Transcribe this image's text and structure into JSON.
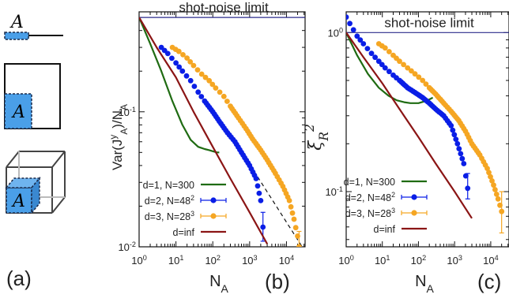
{
  "panel_labels": {
    "a": "(a)",
    "b": "(b)",
    "c": "(c)"
  },
  "schematic": {
    "region_label": "A"
  },
  "colors": {
    "d1": "#1f6b12",
    "d2": "#0a1ee6",
    "d3": "#f5a623",
    "dinf": "#8b1515",
    "shotnoise": "#2b2b8c",
    "region_fill": "#4a9fe8",
    "region_border": "#1a2a4a"
  },
  "chart_data": [
    {
      "type": "line",
      "panel": "b",
      "xlabel": "N_A",
      "ylabel": "Var(J^y_A)/N_A",
      "xscale": "log",
      "yscale": "log",
      "xlim": [
        1,
        32000
      ],
      "ylim": [
        0.01,
        0.55
      ],
      "x_ticks": [
        1,
        10,
        100,
        1000,
        10000
      ],
      "x_tick_labels": [
        "10^0",
        "10^1",
        "10^2",
        "10^3",
        "10^4"
      ],
      "y_ticks": [
        0.01,
        0.1
      ],
      "y_tick_labels": [
        "10^-2",
        "10^-1"
      ],
      "annotation": "shot-noise limit",
      "reference_line": {
        "y": 0.5
      },
      "guide_line": {
        "style": "dashed",
        "x": [
          500,
          30000
        ],
        "y": [
          0.055,
          0.0095
        ]
      },
      "legend": [
        {
          "name": "d=1, N=300",
          "series": "d1"
        },
        {
          "name": "d=2, N=48^2",
          "series": "d2"
        },
        {
          "name": "d=3, N=28^3",
          "series": "d3"
        },
        {
          "name": "d=inf",
          "series": "dinf"
        }
      ],
      "series": [
        {
          "id": "d1",
          "name": "d=1, N=300",
          "kind": "line",
          "x": [
            1,
            2,
            4,
            8,
            15,
            25,
            40,
            60,
            80,
            100,
            130,
            150
          ],
          "y": [
            0.5,
            0.32,
            0.2,
            0.12,
            0.08,
            0.062,
            0.055,
            0.053,
            0.052,
            0.051,
            0.05,
            0.05
          ]
        },
        {
          "id": "d2",
          "name": "d=2, N=48^2",
          "kind": "points",
          "x": [
            4,
            6,
            10,
            15,
            25,
            40,
            60,
            100,
            150,
            250,
            400,
            600,
            1000,
            1500,
            2000,
            2300
          ],
          "y": [
            0.3,
            0.27,
            0.23,
            0.2,
            0.17,
            0.14,
            0.12,
            0.1,
            0.085,
            0.07,
            0.06,
            0.05,
            0.04,
            0.032,
            0.022,
            0.014
          ],
          "error_last": [
            0.011,
            0.018
          ]
        },
        {
          "id": "d3",
          "name": "d=3, N=28^3",
          "kind": "points",
          "x": [
            8,
            12,
            20,
            30,
            50,
            80,
            120,
            200,
            300,
            500,
            800,
            1200,
            2000,
            3000,
            5000,
            8000,
            12000,
            16000,
            20000,
            22000
          ],
          "y": [
            0.3,
            0.28,
            0.25,
            0.22,
            0.19,
            0.17,
            0.15,
            0.13,
            0.11,
            0.09,
            0.075,
            0.063,
            0.052,
            0.044,
            0.035,
            0.028,
            0.022,
            0.016,
            0.012,
            0.01
          ],
          "error_last": [
            0.0075,
            0.013
          ]
        },
        {
          "id": "dinf",
          "name": "d=inf",
          "kind": "line",
          "x": [
            1,
            3,
            10,
            30,
            100,
            300,
            1000,
            3000
          ],
          "y": [
            0.5,
            0.3,
            0.18,
            0.1,
            0.055,
            0.032,
            0.018,
            0.0105
          ]
        }
      ]
    },
    {
      "type": "line",
      "panel": "c",
      "xlabel": "N_A",
      "ylabel": "ξ_R^2",
      "xscale": "log",
      "yscale": "log",
      "xlim": [
        1,
        32000
      ],
      "ylim": [
        0.045,
        1.35
      ],
      "x_ticks": [
        1,
        10,
        100,
        1000,
        10000
      ],
      "x_tick_labels": [
        "10^0",
        "10^1",
        "10^2",
        "10^3",
        "10^4"
      ],
      "y_ticks": [
        0.1,
        1
      ],
      "y_tick_labels": [
        "10^-1",
        "10^0"
      ],
      "annotation": "shot-noise limit",
      "reference_line": {
        "y": 1
      },
      "legend": [
        {
          "name": "d=1, N=300",
          "series": "d1"
        },
        {
          "name": "d=2, N=48^2",
          "series": "d2"
        },
        {
          "name": "d=3, N=28^3",
          "series": "d3"
        },
        {
          "name": "d=inf",
          "series": "dinf"
        }
      ],
      "series": [
        {
          "id": "d1",
          "name": "d=1, N=300",
          "kind": "line",
          "x": [
            1,
            2,
            4,
            8,
            15,
            25,
            40,
            60,
            100,
            150,
            200,
            250
          ],
          "y": [
            1.0,
            0.72,
            0.55,
            0.45,
            0.4,
            0.375,
            0.365,
            0.36,
            0.36,
            0.37,
            0.38,
            0.39
          ]
        },
        {
          "id": "d2",
          "name": "d=2, N=48^2",
          "kind": "points",
          "x": [
            1,
            2,
            3,
            5,
            8,
            12,
            20,
            30,
            50,
            80,
            130,
            200,
            300,
            500,
            800,
            1200,
            1800,
            2300
          ],
          "y": [
            1.25,
            0.95,
            0.85,
            0.74,
            0.66,
            0.6,
            0.54,
            0.5,
            0.45,
            0.42,
            0.39,
            0.36,
            0.33,
            0.3,
            0.26,
            0.2,
            0.15,
            0.105
          ],
          "error_last": [
            0.09,
            0.13
          ]
        },
        {
          "id": "d3",
          "name": "d=3, N=28^3",
          "kind": "points",
          "x": [
            8,
            12,
            20,
            30,
            50,
            80,
            130,
            200,
            300,
            500,
            800,
            1300,
            2000,
            3000,
            5000,
            8000,
            12000,
            16000,
            20000
          ],
          "y": [
            0.85,
            0.8,
            0.72,
            0.66,
            0.6,
            0.55,
            0.5,
            0.45,
            0.41,
            0.36,
            0.32,
            0.28,
            0.24,
            0.2,
            0.17,
            0.14,
            0.11,
            0.09,
            0.075
          ],
          "error_last": [
            0.055,
            0.1
          ]
        },
        {
          "id": "dinf",
          "name": "d=inf",
          "kind": "line",
          "x": [
            1,
            3,
            10,
            30,
            100,
            300,
            1000,
            3000
          ],
          "y": [
            1.0,
            0.7,
            0.48,
            0.33,
            0.22,
            0.15,
            0.1,
            0.068
          ]
        }
      ]
    }
  ]
}
